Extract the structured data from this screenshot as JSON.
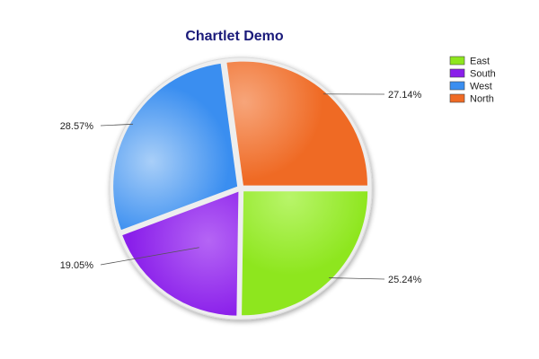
{
  "chart_data": {
    "type": "pie",
    "title": "Chartlet Demo",
    "title_color": "#1a1a7a",
    "legend_position": "top-right",
    "slices": [
      {
        "name": "East",
        "value": 25.24,
        "label": "25.24%",
        "color": "#8ee61e",
        "highlight": "#b8f56a"
      },
      {
        "name": "South",
        "value": 19.05,
        "label": "19.05%",
        "color": "#8a1fea",
        "highlight": "#b565f5"
      },
      {
        "name": "West",
        "value": 28.57,
        "label": "28.57%",
        "color": "#3a8ef0",
        "highlight": "#a9cff8"
      },
      {
        "name": "North",
        "value": 27.14,
        "label": "27.14%",
        "color": "#ef6a24",
        "highlight": "#f7a57a"
      }
    ]
  }
}
